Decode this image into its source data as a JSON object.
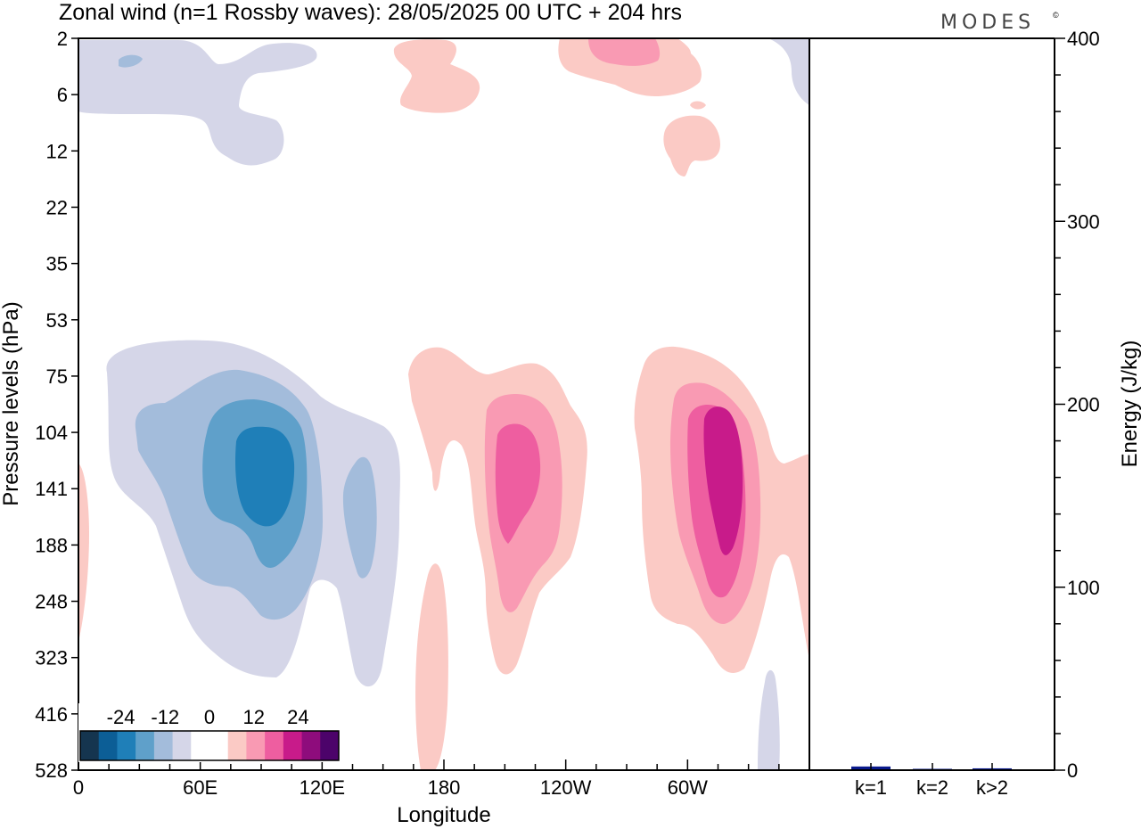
{
  "header": {
    "title": "Zonal wind (n=1 Rossby waves):  28/05/2025  00 UTC  + 204 hrs",
    "brand": "MODES",
    "brand_mark": "©"
  },
  "chart_data": [
    {
      "type": "heatmap",
      "title": "Zonal wind (n=1 Rossby waves):  28/05/2025  00 UTC  + 204 hrs",
      "xlabel": "Longitude",
      "ylabel": "Pressure levels (hPa)",
      "x_ticks": [
        "0",
        "60E",
        "120E",
        "180",
        "120W",
        "60W"
      ],
      "x_tick_degrees": [
        0,
        60,
        120,
        180,
        240,
        300
      ],
      "xlim": [
        0,
        360
      ],
      "y_ticks": [
        "2",
        "6",
        "12",
        "22",
        "35",
        "53",
        "75",
        "104",
        "141",
        "188",
        "248",
        "323",
        "416",
        "528"
      ],
      "y_reversed": true,
      "colorbar": {
        "labels": [
          "-24",
          "-12",
          "0",
          "12",
          "24"
        ],
        "levels": [
          -30,
          -25,
          -20,
          -15,
          -10,
          -5,
          0,
          5,
          10,
          15,
          20,
          25,
          30
        ],
        "colors": [
          "#15354f",
          "#0c5e96",
          "#1f7fb8",
          "#5fa0ca",
          "#a3bcdb",
          "#d5d6e8",
          "#ffffff",
          "#ffffff",
          "#fbcac5",
          "#f99ab3",
          "#ee5ea0",
          "#c81b8a",
          "#8e0c7c",
          "#4c036a"
        ]
      },
      "features": [
        {
          "sign": "negative",
          "lon": 75,
          "level": "141",
          "min": -15,
          "label": "main negative core"
        },
        {
          "sign": "negative",
          "lon": 138,
          "level": "188",
          "min": -7,
          "label": "secondary negative lobe"
        },
        {
          "sign": "positive",
          "lon": 208,
          "level": "141",
          "max": 12,
          "label": "positive core near 150W"
        },
        {
          "sign": "positive",
          "lon": 302,
          "level": "141",
          "max": 17,
          "label": "positive core near 60W"
        },
        {
          "sign": "negative",
          "lon": 45,
          "level": "6",
          "min": -7,
          "label": "upper negative patch"
        },
        {
          "sign": "positive",
          "lon": 250,
          "level": "2",
          "max": 7,
          "label": "upper positive patch"
        }
      ]
    },
    {
      "type": "bar",
      "categories": [
        "k=1",
        "k=2",
        "k>2"
      ],
      "values": [
        2,
        0.3,
        1
      ],
      "ylabel": "Energy (J/kg)",
      "ylim": [
        0,
        400
      ],
      "y_ticks": [
        "0",
        "100",
        "200",
        "300",
        "400"
      ],
      "bar_color": "#0a1a8c"
    }
  ]
}
